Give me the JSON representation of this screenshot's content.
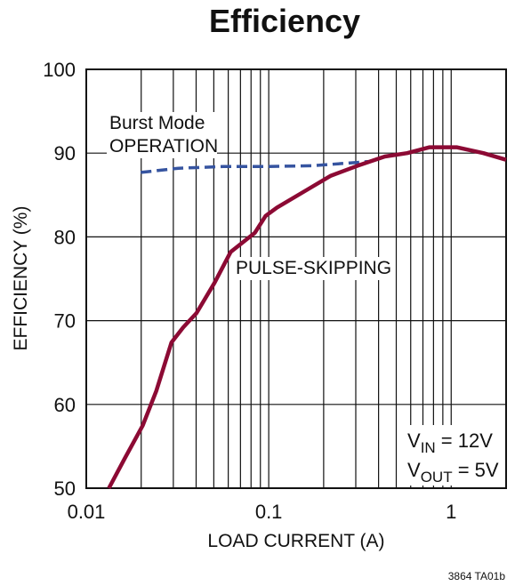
{
  "chart_data": {
    "type": "line",
    "title": "Efficiency",
    "x_label": "LOAD CURRENT (A)",
    "y_label": "EFFICIENCY (%)",
    "xscale": "log",
    "xlim": [
      0.01,
      2
    ],
    "ylim": [
      50,
      100
    ],
    "xticks": [
      {
        "value": 0.01,
        "label": "0.01"
      },
      0.1,
      1
    ],
    "xminor": [
      0.02,
      0.03,
      0.04,
      0.05,
      0.06,
      0.07,
      0.08,
      0.09,
      0.2,
      0.3,
      0.4,
      0.5,
      0.6,
      0.7,
      0.8,
      0.9,
      2
    ],
    "yticks": [
      50,
      60,
      70,
      80,
      90,
      100
    ],
    "grid": true,
    "series": [
      {
        "name": "PULSE-SKIPPING",
        "color": "#8c0a34",
        "dash": false,
        "x": [
          0.0133,
          0.0163,
          0.0204,
          0.0242,
          0.0293,
          0.034,
          0.0402,
          0.0504,
          0.0618,
          0.0725,
          0.084,
          0.0961,
          0.111,
          0.156,
          0.219,
          0.308,
          0.433,
          0.574,
          0.762,
          1.07,
          1.5,
          2
        ],
        "values": [
          50,
          53.6,
          57.5,
          61.6,
          67.4,
          69.2,
          70.9,
          74.5,
          78.2,
          79.4,
          80.5,
          82.5,
          83.5,
          85.4,
          87.3,
          88.5,
          89.6,
          90.0,
          90.7,
          90.7,
          90.0,
          89.2
        ]
      },
      {
        "name": "Burst Mode OPERATION",
        "color": "#3654a0",
        "dash": true,
        "x": [
          0.0199,
          0.032,
          0.0565,
          0.099,
          0.175,
          0.308,
          0.35
        ],
        "values": [
          87.7,
          88.2,
          88.4,
          88.4,
          88.5,
          88.9,
          89.0
        ]
      }
    ],
    "conditions": [
      [
        "V",
        "IN",
        " = 12V"
      ],
      [
        "V",
        "OUT",
        " = 5V"
      ]
    ],
    "footnote": "3864 TA01b"
  }
}
